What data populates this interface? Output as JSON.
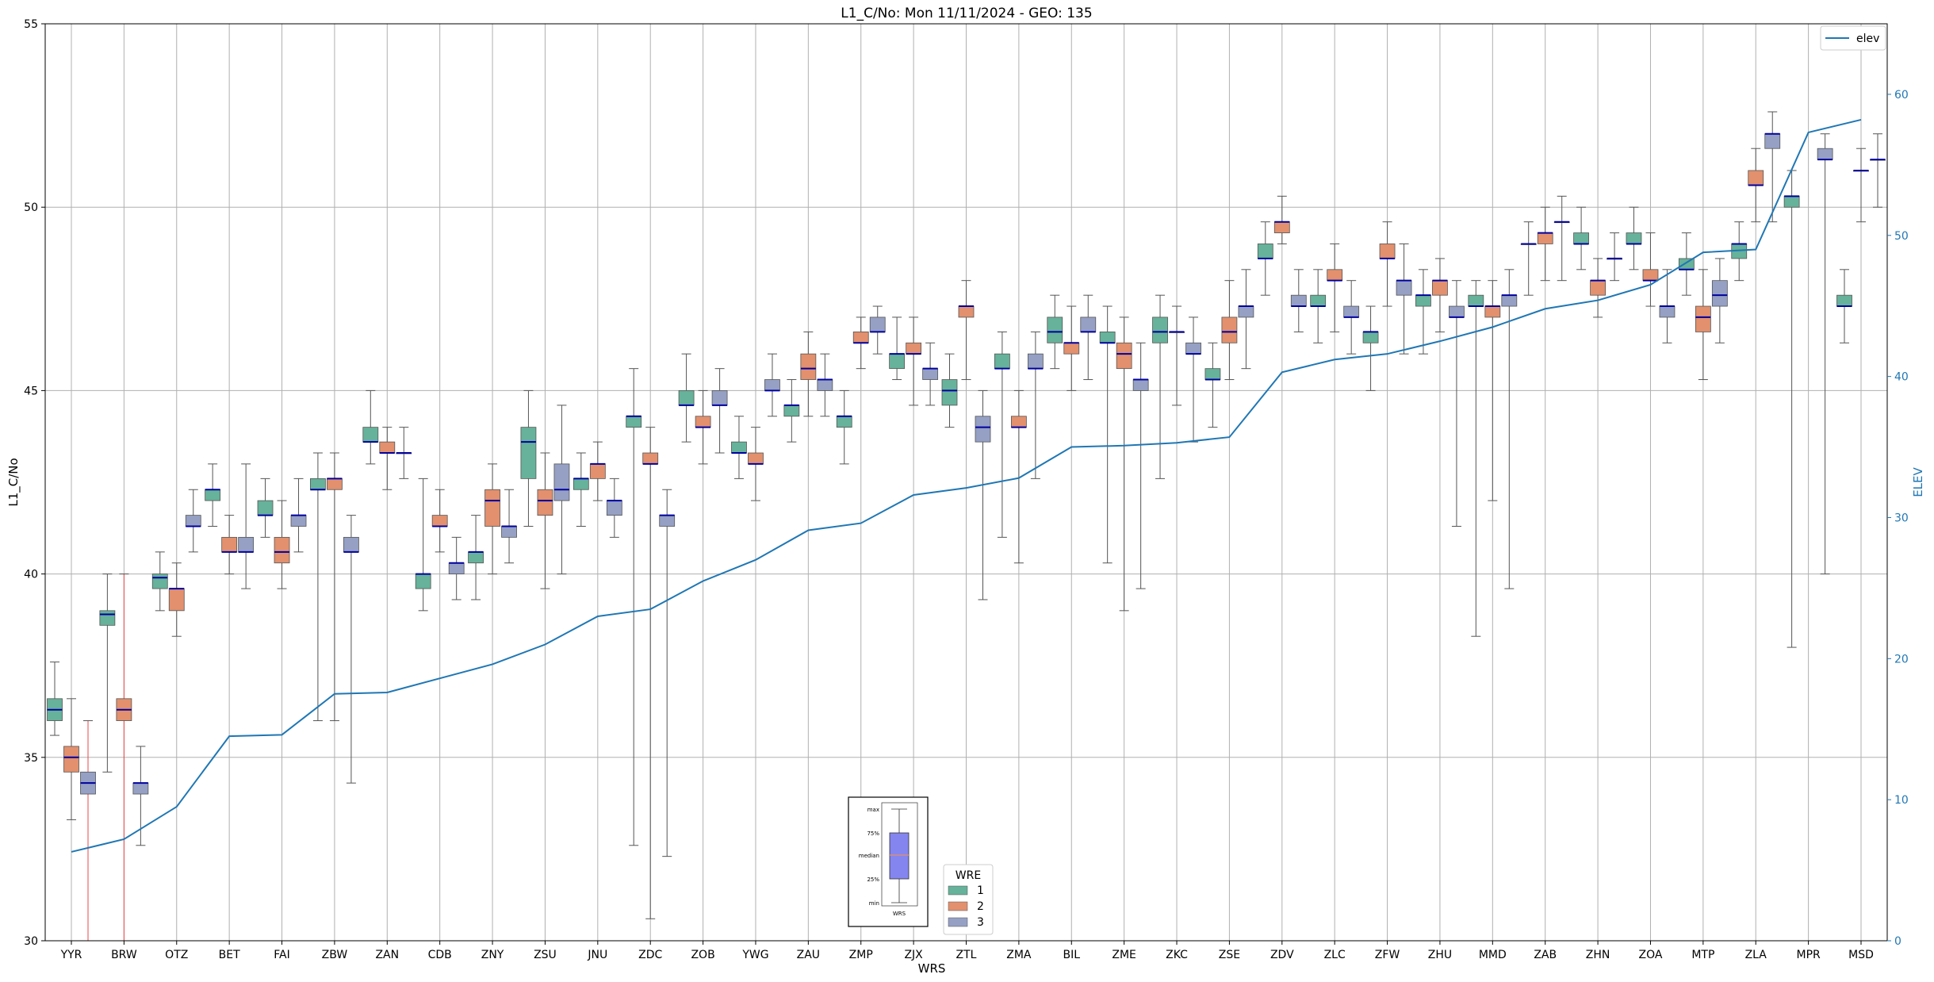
{
  "chart_data": {
    "type": "box",
    "title": "L1_C/No: Mon 11/11/2024 - GEO: 135",
    "xlabel": "WRS",
    "ylabel": "L1_C/No",
    "y2label": "ELEV",
    "ylim": [
      30,
      55
    ],
    "y2lim": [
      0,
      65
    ],
    "yticks": [
      30,
      35,
      40,
      45,
      50,
      55
    ],
    "y2ticks": [
      0,
      10,
      20,
      30,
      40,
      50,
      60
    ],
    "grid": true,
    "categories": [
      "YYR",
      "BRW",
      "OTZ",
      "BET",
      "FAI",
      "ZBW",
      "ZAN",
      "CDB",
      "ZNY",
      "ZSU",
      "JNU",
      "ZDC",
      "ZOB",
      "YWG",
      "ZAU",
      "ZMP",
      "ZJX",
      "ZTL",
      "ZMA",
      "BIL",
      "ZME",
      "ZKC",
      "ZSE",
      "ZDV",
      "ZLC",
      "ZFW",
      "ZHU",
      "MMD",
      "ZAB",
      "ZHN",
      "ZOA",
      "MTP",
      "ZLA",
      "MPR",
      "MSD"
    ],
    "wre_colors": {
      "1": "#66b29a",
      "2": "#e2906e",
      "3": "#95a0c4"
    },
    "elev_color": "#1f77b4",
    "elev_series": {
      "name": "elev",
      "values": [
        6.3,
        7.2,
        9.5,
        14.5,
        14.6,
        17.5,
        17.6,
        18.6,
        19.6,
        21.0,
        23.0,
        23.5,
        25.5,
        27.0,
        29.1,
        29.6,
        31.6,
        32.1,
        32.8,
        35.0,
        35.1,
        35.3,
        35.7,
        40.3,
        41.2,
        41.6,
        42.5,
        43.5,
        44.8,
        45.4,
        46.5,
        48.8,
        49.0,
        57.3,
        58.2
      ]
    },
    "boxes": [
      {
        "cat": "YYR",
        "wre": 1,
        "min": 35.6,
        "q1": 36.0,
        "med": 36.3,
        "q3": 36.6,
        "max": 37.6
      },
      {
        "cat": "YYR",
        "wre": 2,
        "min": 33.3,
        "q1": 34.6,
        "med": 35.0,
        "q3": 35.3,
        "max": 36.6
      },
      {
        "cat": "YYR",
        "wre": 3,
        "min": 30.0,
        "q1": 34.0,
        "med": 34.3,
        "q3": 34.6,
        "max": 36.0
      },
      {
        "cat": "BRW",
        "wre": 1,
        "min": 34.6,
        "q1": 38.6,
        "med": 38.9,
        "q3": 39.0,
        "max": 40.0
      },
      {
        "cat": "BRW",
        "wre": 2,
        "min": 30.0,
        "q1": 36.0,
        "med": 36.3,
        "q3": 36.6,
        "max": 40.0
      },
      {
        "cat": "BRW",
        "wre": 3,
        "min": 32.6,
        "q1": 34.0,
        "med": 34.3,
        "q3": 34.3,
        "max": 35.3
      },
      {
        "cat": "OTZ",
        "wre": 1,
        "min": 39.0,
        "q1": 39.6,
        "med": 39.9,
        "q3": 40.0,
        "max": 40.6
      },
      {
        "cat": "OTZ",
        "wre": 2,
        "min": 38.3,
        "q1": 39.0,
        "med": 39.6,
        "q3": 39.6,
        "max": 40.3
      },
      {
        "cat": "OTZ",
        "wre": 3,
        "min": 40.6,
        "q1": 41.3,
        "med": 41.3,
        "q3": 41.6,
        "max": 42.3
      },
      {
        "cat": "BET",
        "wre": 1,
        "min": 41.3,
        "q1": 42.0,
        "med": 42.3,
        "q3": 42.3,
        "max": 43.0
      },
      {
        "cat": "BET",
        "wre": 2,
        "min": 40.0,
        "q1": 40.6,
        "med": 40.6,
        "q3": 41.0,
        "max": 41.6
      },
      {
        "cat": "BET",
        "wre": 3,
        "min": 39.6,
        "q1": 40.6,
        "med": 40.6,
        "q3": 41.0,
        "max": 43.0
      },
      {
        "cat": "FAI",
        "wre": 1,
        "min": 41.0,
        "q1": 41.6,
        "med": 41.6,
        "q3": 42.0,
        "max": 42.6
      },
      {
        "cat": "FAI",
        "wre": 2,
        "min": 39.6,
        "q1": 40.3,
        "med": 40.6,
        "q3": 41.0,
        "max": 42.0
      },
      {
        "cat": "FAI",
        "wre": 3,
        "min": 40.6,
        "q1": 41.3,
        "med": 41.6,
        "q3": 41.6,
        "max": 42.6
      },
      {
        "cat": "ZBW",
        "wre": 1,
        "min": 36.0,
        "q1": 42.3,
        "med": 42.3,
        "q3": 42.6,
        "max": 43.3
      },
      {
        "cat": "ZBW",
        "wre": 2,
        "min": 36.0,
        "q1": 42.3,
        "med": 42.6,
        "q3": 42.6,
        "max": 43.3
      },
      {
        "cat": "ZBW",
        "wre": 3,
        "min": 34.3,
        "q1": 40.6,
        "med": 40.6,
        "q3": 41.0,
        "max": 41.6
      },
      {
        "cat": "ZAN",
        "wre": 1,
        "min": 43.0,
        "q1": 43.6,
        "med": 43.6,
        "q3": 44.0,
        "max": 45.0
      },
      {
        "cat": "ZAN",
        "wre": 2,
        "min": 42.3,
        "q1": 43.3,
        "med": 43.3,
        "q3": 43.6,
        "max": 44.0
      },
      {
        "cat": "ZAN",
        "wre": 3,
        "min": 42.6,
        "q1": 43.3,
        "med": 43.3,
        "q3": 43.3,
        "max": 44.0
      },
      {
        "cat": "CDB",
        "wre": 1,
        "min": 39.0,
        "q1": 39.6,
        "med": 40.0,
        "q3": 40.0,
        "max": 42.6
      },
      {
        "cat": "CDB",
        "wre": 2,
        "min": 40.6,
        "q1": 41.3,
        "med": 41.3,
        "q3": 41.6,
        "max": 42.3
      },
      {
        "cat": "CDB",
        "wre": 3,
        "min": 39.3,
        "q1": 40.0,
        "med": 40.3,
        "q3": 40.3,
        "max": 41.0
      },
      {
        "cat": "ZNY",
        "wre": 1,
        "min": 39.3,
        "q1": 40.3,
        "med": 40.6,
        "q3": 40.6,
        "max": 41.6
      },
      {
        "cat": "ZNY",
        "wre": 2,
        "min": 40.0,
        "q1": 41.3,
        "med": 42.0,
        "q3": 42.3,
        "max": 43.0
      },
      {
        "cat": "ZNY",
        "wre": 3,
        "min": 40.3,
        "q1": 41.0,
        "med": 41.3,
        "q3": 41.3,
        "max": 42.3
      },
      {
        "cat": "ZSU",
        "wre": 1,
        "min": 41.3,
        "q1": 42.6,
        "med": 43.6,
        "q3": 44.0,
        "max": 45.0
      },
      {
        "cat": "ZSU",
        "wre": 2,
        "min": 39.6,
        "q1": 41.6,
        "med": 42.0,
        "q3": 42.3,
        "max": 43.3
      },
      {
        "cat": "ZSU",
        "wre": 3,
        "min": 40.0,
        "q1": 42.0,
        "med": 42.3,
        "q3": 43.0,
        "max": 44.6
      },
      {
        "cat": "JNU",
        "wre": 1,
        "min": 41.3,
        "q1": 42.3,
        "med": 42.6,
        "q3": 42.6,
        "max": 43.3
      },
      {
        "cat": "JNU",
        "wre": 2,
        "min": 42.0,
        "q1": 42.6,
        "med": 43.0,
        "q3": 43.0,
        "max": 43.6
      },
      {
        "cat": "JNU",
        "wre": 3,
        "min": 41.0,
        "q1": 41.6,
        "med": 42.0,
        "q3": 42.0,
        "max": 42.6
      },
      {
        "cat": "ZDC",
        "wre": 1,
        "min": 32.6,
        "q1": 44.0,
        "med": 44.3,
        "q3": 44.3,
        "max": 45.6
      },
      {
        "cat": "ZDC",
        "wre": 2,
        "min": 30.6,
        "q1": 43.0,
        "med": 43.0,
        "q3": 43.3,
        "max": 44.0
      },
      {
        "cat": "ZDC",
        "wre": 3,
        "min": 32.3,
        "q1": 41.3,
        "med": 41.6,
        "q3": 41.6,
        "max": 42.3
      },
      {
        "cat": "ZOB",
        "wre": 1,
        "min": 43.6,
        "q1": 44.6,
        "med": 44.6,
        "q3": 45.0,
        "max": 46.0
      },
      {
        "cat": "ZOB",
        "wre": 2,
        "min": 43.0,
        "q1": 44.0,
        "med": 44.0,
        "q3": 44.3,
        "max": 45.0
      },
      {
        "cat": "ZOB",
        "wre": 3,
        "min": 43.3,
        "q1": 44.6,
        "med": 44.6,
        "q3": 45.0,
        "max": 45.6
      },
      {
        "cat": "YWG",
        "wre": 1,
        "min": 42.6,
        "q1": 43.3,
        "med": 43.3,
        "q3": 43.6,
        "max": 44.3
      },
      {
        "cat": "YWG",
        "wre": 2,
        "min": 42.0,
        "q1": 43.0,
        "med": 43.0,
        "q3": 43.3,
        "max": 44.0
      },
      {
        "cat": "YWG",
        "wre": 3,
        "min": 44.3,
        "q1": 45.0,
        "med": 45.0,
        "q3": 45.3,
        "max": 46.0
      },
      {
        "cat": "ZAU",
        "wre": 1,
        "min": 43.6,
        "q1": 44.3,
        "med": 44.6,
        "q3": 44.6,
        "max": 45.3
      },
      {
        "cat": "ZAU",
        "wre": 2,
        "min": 44.3,
        "q1": 45.3,
        "med": 45.6,
        "q3": 46.0,
        "max": 46.6
      },
      {
        "cat": "ZAU",
        "wre": 3,
        "min": 44.3,
        "q1": 45.0,
        "med": 45.3,
        "q3": 45.3,
        "max": 46.0
      },
      {
        "cat": "ZMP",
        "wre": 1,
        "min": 43.0,
        "q1": 44.0,
        "med": 44.3,
        "q3": 44.3,
        "max": 45.0
      },
      {
        "cat": "ZMP",
        "wre": 2,
        "min": 45.6,
        "q1": 46.3,
        "med": 46.3,
        "q3": 46.6,
        "max": 47.0
      },
      {
        "cat": "ZMP",
        "wre": 3,
        "min": 46.0,
        "q1": 46.6,
        "med": 46.6,
        "q3": 47.0,
        "max": 47.3
      },
      {
        "cat": "ZJX",
        "wre": 1,
        "min": 45.3,
        "q1": 45.6,
        "med": 46.0,
        "q3": 46.0,
        "max": 47.0
      },
      {
        "cat": "ZJX",
        "wre": 2,
        "min": 44.6,
        "q1": 46.0,
        "med": 46.0,
        "q3": 46.3,
        "max": 47.0
      },
      {
        "cat": "ZJX",
        "wre": 3,
        "min": 44.6,
        "q1": 45.3,
        "med": 45.6,
        "q3": 45.6,
        "max": 46.3
      },
      {
        "cat": "ZTL",
        "wre": 1,
        "min": 44.0,
        "q1": 44.6,
        "med": 45.0,
        "q3": 45.3,
        "max": 46.0
      },
      {
        "cat": "ZTL",
        "wre": 2,
        "min": 45.3,
        "q1": 47.0,
        "med": 47.3,
        "q3": 47.3,
        "max": 48.0
      },
      {
        "cat": "ZTL",
        "wre": 3,
        "min": 39.3,
        "q1": 43.6,
        "med": 44.0,
        "q3": 44.3,
        "max": 45.0
      },
      {
        "cat": "ZMA",
        "wre": 1,
        "min": 41.0,
        "q1": 45.6,
        "med": 45.6,
        "q3": 46.0,
        "max": 46.6
      },
      {
        "cat": "ZMA",
        "wre": 2,
        "min": 40.3,
        "q1": 44.0,
        "med": 44.0,
        "q3": 44.3,
        "max": 45.0
      },
      {
        "cat": "ZMA",
        "wre": 3,
        "min": 42.6,
        "q1": 45.6,
        "med": 45.6,
        "q3": 46.0,
        "max": 46.6
      },
      {
        "cat": "BIL",
        "wre": 1,
        "min": 45.6,
        "q1": 46.3,
        "med": 46.6,
        "q3": 47.0,
        "max": 47.6
      },
      {
        "cat": "BIL",
        "wre": 2,
        "min": 45.0,
        "q1": 46.0,
        "med": 46.3,
        "q3": 46.3,
        "max": 47.3
      },
      {
        "cat": "BIL",
        "wre": 3,
        "min": 45.3,
        "q1": 46.6,
        "med": 46.6,
        "q3": 47.0,
        "max": 47.6
      },
      {
        "cat": "ZME",
        "wre": 1,
        "min": 40.3,
        "q1": 46.3,
        "med": 46.3,
        "q3": 46.6,
        "max": 47.3
      },
      {
        "cat": "ZME",
        "wre": 2,
        "min": 39.0,
        "q1": 45.6,
        "med": 46.0,
        "q3": 46.3,
        "max": 47.0
      },
      {
        "cat": "ZME",
        "wre": 3,
        "min": 39.6,
        "q1": 45.0,
        "med": 45.3,
        "q3": 45.3,
        "max": 46.3
      },
      {
        "cat": "ZKC",
        "wre": 1,
        "min": 42.6,
        "q1": 46.3,
        "med": 46.6,
        "q3": 47.0,
        "max": 47.6
      },
      {
        "cat": "ZKC",
        "wre": 2,
        "min": 44.6,
        "q1": 46.6,
        "med": 46.6,
        "q3": 46.6,
        "max": 47.3
      },
      {
        "cat": "ZKC",
        "wre": 3,
        "min": 43.6,
        "q1": 46.0,
        "med": 46.0,
        "q3": 46.3,
        "max": 47.0
      },
      {
        "cat": "ZSE",
        "wre": 1,
        "min": 44.0,
        "q1": 45.3,
        "med": 45.3,
        "q3": 45.6,
        "max": 46.3
      },
      {
        "cat": "ZSE",
        "wre": 2,
        "min": 45.3,
        "q1": 46.3,
        "med": 46.6,
        "q3": 47.0,
        "max": 48.0
      },
      {
        "cat": "ZSE",
        "wre": 3,
        "min": 45.6,
        "q1": 47.0,
        "med": 47.3,
        "q3": 47.3,
        "max": 48.3
      },
      {
        "cat": "ZDV",
        "wre": 1,
        "min": 47.6,
        "q1": 48.6,
        "med": 48.6,
        "q3": 49.0,
        "max": 49.6
      },
      {
        "cat": "ZDV",
        "wre": 2,
        "min": 49.0,
        "q1": 49.3,
        "med": 49.6,
        "q3": 49.6,
        "max": 50.3
      },
      {
        "cat": "ZDV",
        "wre": 3,
        "min": 46.6,
        "q1": 47.3,
        "med": 47.3,
        "q3": 47.6,
        "max": 48.3
      },
      {
        "cat": "ZLC",
        "wre": 1,
        "min": 46.3,
        "q1": 47.3,
        "med": 47.3,
        "q3": 47.6,
        "max": 48.3
      },
      {
        "cat": "ZLC",
        "wre": 2,
        "min": 46.6,
        "q1": 48.0,
        "med": 48.0,
        "q3": 48.3,
        "max": 49.0
      },
      {
        "cat": "ZLC",
        "wre": 3,
        "min": 46.0,
        "q1": 47.0,
        "med": 47.0,
        "q3": 47.3,
        "max": 48.0
      },
      {
        "cat": "ZFW",
        "wre": 1,
        "min": 45.0,
        "q1": 46.3,
        "med": 46.6,
        "q3": 46.6,
        "max": 47.3
      },
      {
        "cat": "ZFW",
        "wre": 2,
        "min": 47.3,
        "q1": 48.6,
        "med": 48.6,
        "q3": 49.0,
        "max": 49.6
      },
      {
        "cat": "ZFW",
        "wre": 3,
        "min": 46.0,
        "q1": 47.6,
        "med": 48.0,
        "q3": 48.0,
        "max": 49.0
      },
      {
        "cat": "ZHU",
        "wre": 1,
        "min": 46.0,
        "q1": 47.3,
        "med": 47.6,
        "q3": 47.6,
        "max": 48.3
      },
      {
        "cat": "ZHU",
        "wre": 2,
        "min": 46.6,
        "q1": 47.6,
        "med": 48.0,
        "q3": 48.0,
        "max": 48.6
      },
      {
        "cat": "ZHU",
        "wre": 3,
        "min": 41.3,
        "q1": 47.0,
        "med": 47.0,
        "q3": 47.3,
        "max": 48.0
      },
      {
        "cat": "MMD",
        "wre": 1,
        "min": 38.3,
        "q1": 47.3,
        "med": 47.3,
        "q3": 47.6,
        "max": 48.0
      },
      {
        "cat": "MMD",
        "wre": 2,
        "min": 42.0,
        "q1": 47.0,
        "med": 47.3,
        "q3": 47.3,
        "max": 48.0
      },
      {
        "cat": "MMD",
        "wre": 3,
        "min": 39.6,
        "q1": 47.3,
        "med": 47.6,
        "q3": 47.6,
        "max": 48.3
      },
      {
        "cat": "ZAB",
        "wre": 1,
        "min": 47.6,
        "q1": 49.0,
        "med": 49.0,
        "q3": 49.0,
        "max": 49.6
      },
      {
        "cat": "ZAB",
        "wre": 2,
        "min": 48.0,
        "q1": 49.0,
        "med": 49.3,
        "q3": 49.3,
        "max": 50.0
      },
      {
        "cat": "ZAB",
        "wre": 3,
        "min": 48.0,
        "q1": 49.6,
        "med": 49.6,
        "q3": 49.6,
        "max": 50.3
      },
      {
        "cat": "ZHN",
        "wre": 1,
        "min": 48.3,
        "q1": 49.0,
        "med": 49.0,
        "q3": 49.3,
        "max": 50.0
      },
      {
        "cat": "ZHN",
        "wre": 2,
        "min": 47.0,
        "q1": 47.6,
        "med": 48.0,
        "q3": 48.0,
        "max": 48.6
      },
      {
        "cat": "ZHN",
        "wre": 3,
        "min": 48.0,
        "q1": 48.6,
        "med": 48.6,
        "q3": 48.6,
        "max": 49.3
      },
      {
        "cat": "ZOA",
        "wre": 1,
        "min": 48.3,
        "q1": 49.0,
        "med": 49.0,
        "q3": 49.3,
        "max": 50.0
      },
      {
        "cat": "ZOA",
        "wre": 2,
        "min": 47.3,
        "q1": 48.0,
        "med": 48.0,
        "q3": 48.3,
        "max": 49.3
      },
      {
        "cat": "ZOA",
        "wre": 3,
        "min": 46.3,
        "q1": 47.0,
        "med": 47.3,
        "q3": 47.3,
        "max": 48.3
      },
      {
        "cat": "MTP",
        "wre": 1,
        "min": 47.6,
        "q1": 48.3,
        "med": 48.3,
        "q3": 48.6,
        "max": 49.3
      },
      {
        "cat": "MTP",
        "wre": 2,
        "min": 45.3,
        "q1": 46.6,
        "med": 47.0,
        "q3": 47.3,
        "max": 48.3
      },
      {
        "cat": "MTP",
        "wre": 3,
        "min": 46.3,
        "q1": 47.3,
        "med": 47.6,
        "q3": 48.0,
        "max": 48.6
      },
      {
        "cat": "ZLA",
        "wre": 1,
        "min": 48.0,
        "q1": 48.6,
        "med": 49.0,
        "q3": 49.0,
        "max": 49.6
      },
      {
        "cat": "ZLA",
        "wre": 2,
        "min": 49.6,
        "q1": 50.6,
        "med": 50.6,
        "q3": 51.0,
        "max": 51.6
      },
      {
        "cat": "ZLA",
        "wre": 3,
        "min": 49.6,
        "q1": 51.6,
        "med": 52.0,
        "q3": 52.0,
        "max": 52.6
      },
      {
        "cat": "MPR",
        "wre": 1,
        "min": 38.0,
        "q1": 50.0,
        "med": 50.3,
        "q3": 50.3,
        "max": 51.0
      },
      {
        "cat": "MPR",
        "wre": 3,
        "min": 40.0,
        "q1": 51.3,
        "med": 51.3,
        "q3": 51.6,
        "max": 52.0
      },
      {
        "cat": "MSD",
        "wre": 1,
        "min": 46.3,
        "q1": 47.3,
        "med": 47.3,
        "q3": 47.6,
        "max": 48.3
      },
      {
        "cat": "MSD",
        "wre": 2,
        "min": 49.6,
        "q1": 51.0,
        "med": 51.0,
        "q3": 51.0,
        "max": 51.6
      },
      {
        "cat": "MSD",
        "wre": 3,
        "min": 50.0,
        "q1": 51.3,
        "med": 51.3,
        "q3": 51.3,
        "max": 52.0
      }
    ]
  },
  "legend_elev": {
    "label": "elev"
  },
  "legend_wre": {
    "title": "WRE",
    "labels": [
      "1",
      "2",
      "3"
    ]
  },
  "inset_guide": {
    "labels": [
      "max",
      "75%",
      "median",
      "25%",
      "min"
    ],
    "xlabel": "WRS",
    "fill_color": "#8585f0",
    "median_color": "#e2906e"
  }
}
